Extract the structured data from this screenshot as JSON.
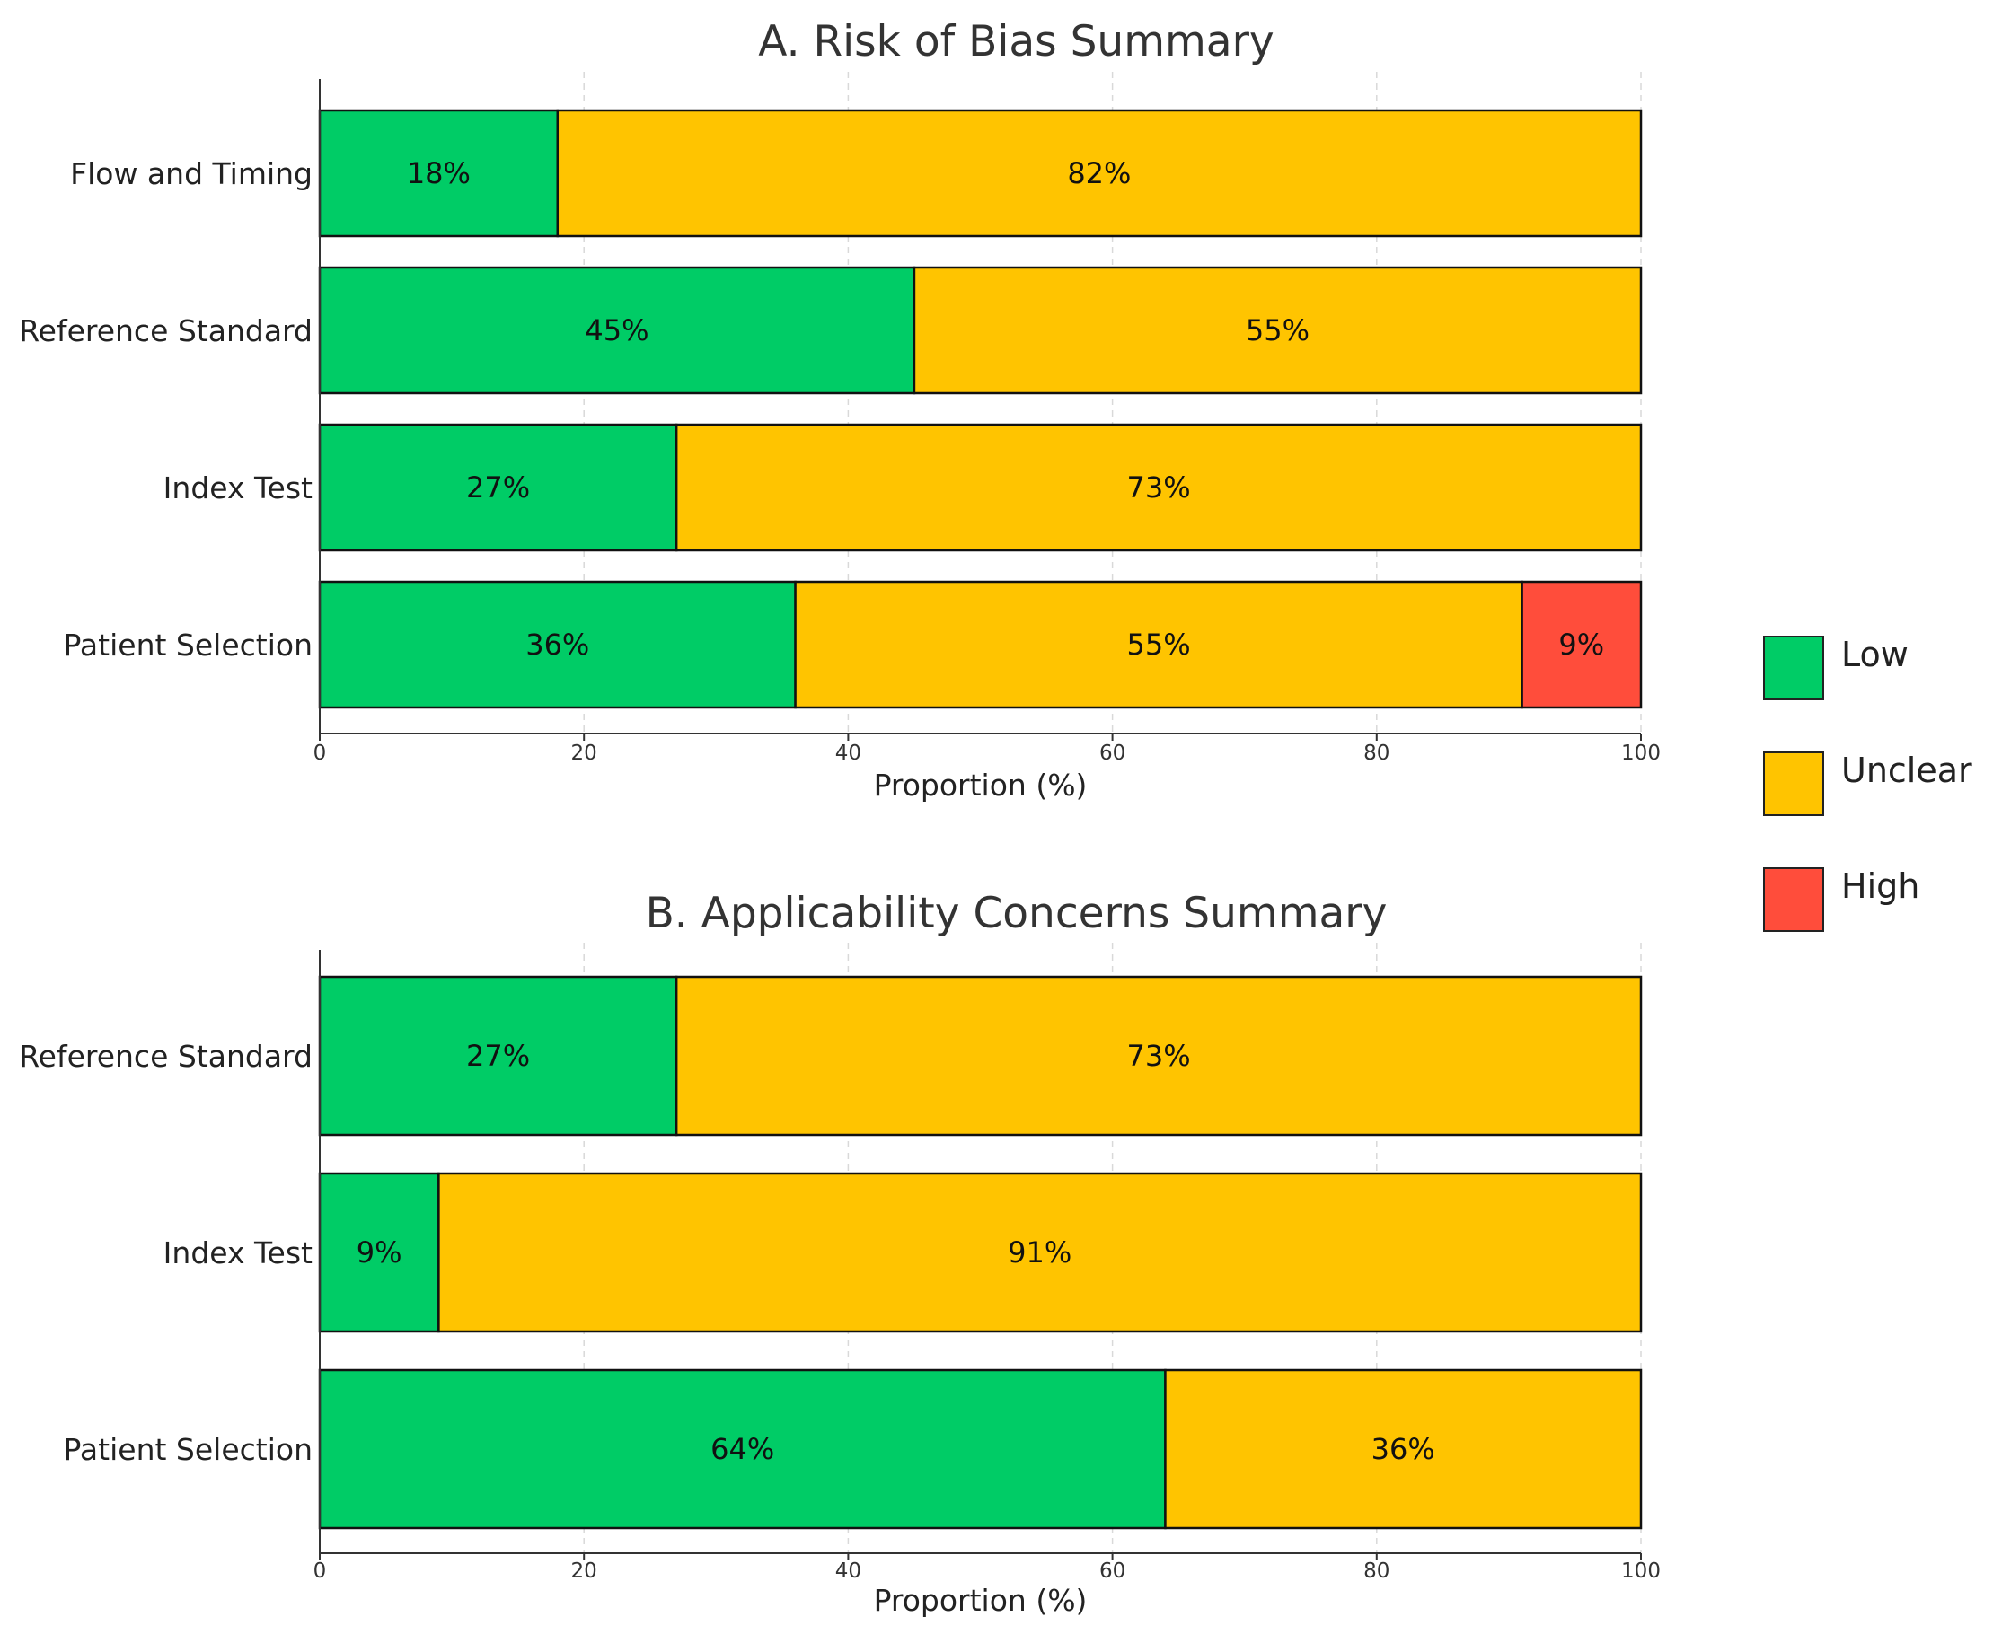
{
  "chart_data": [
    {
      "type": "bar",
      "orientation": "horizontal",
      "stacked": true,
      "title": "A. Risk of Bias Summary",
      "xlabel": "Proportion (%)",
      "ylabel": "",
      "xlim": [
        0,
        100
      ],
      "xticks": [
        0,
        20,
        40,
        60,
        80,
        100
      ],
      "xtick_labels": [
        "0",
        "20",
        "40",
        "60",
        "80",
        "100"
      ],
      "grid": "vertical dashed",
      "categories": [
        "Flow and Timing",
        "Reference Standard",
        "Index Test",
        "Patient Selection"
      ],
      "series": [
        {
          "name": "Low",
          "color": "#00cc66",
          "values": [
            18,
            45,
            27,
            36
          ],
          "labels": [
            "18%",
            "45%",
            "27%",
            "36%"
          ]
        },
        {
          "name": "Unclear",
          "color": "#ffc400",
          "values": [
            82,
            55,
            73,
            55
          ],
          "labels": [
            "82%",
            "55%",
            "73%",
            "55%"
          ]
        },
        {
          "name": "High",
          "color": "#ff4d3b",
          "values": [
            0,
            0,
            0,
            9
          ],
          "labels": [
            "",
            "",
            "",
            "9%"
          ]
        }
      ]
    },
    {
      "type": "bar",
      "orientation": "horizontal",
      "stacked": true,
      "title": "B. Applicability Concerns Summary",
      "xlabel": "Proportion (%)",
      "ylabel": "",
      "xlim": [
        0,
        100
      ],
      "xticks": [
        0,
        20,
        40,
        60,
        80,
        100
      ],
      "xtick_labels": [
        "0",
        "20",
        "40",
        "60",
        "80",
        "100"
      ],
      "grid": "vertical dashed",
      "categories": [
        "Reference Standard",
        "Index Test",
        "Patient Selection"
      ],
      "series": [
        {
          "name": "Low",
          "color": "#00cc66",
          "values": [
            27,
            9,
            64
          ],
          "labels": [
            "27%",
            "9%",
            "64%"
          ]
        },
        {
          "name": "Unclear",
          "color": "#ffc400",
          "values": [
            73,
            91,
            36
          ],
          "labels": [
            "73%",
            "91%",
            "36%"
          ]
        },
        {
          "name": "High",
          "color": "#ff4d3b",
          "values": [
            0,
            0,
            0
          ],
          "labels": [
            "",
            "",
            ""
          ]
        }
      ]
    }
  ],
  "legend": {
    "placement": "right",
    "items": [
      {
        "label": "Low",
        "color": "#00cc66"
      },
      {
        "label": "Unclear",
        "color": "#ffc400"
      },
      {
        "label": "High",
        "color": "#ff4d3b"
      }
    ]
  }
}
